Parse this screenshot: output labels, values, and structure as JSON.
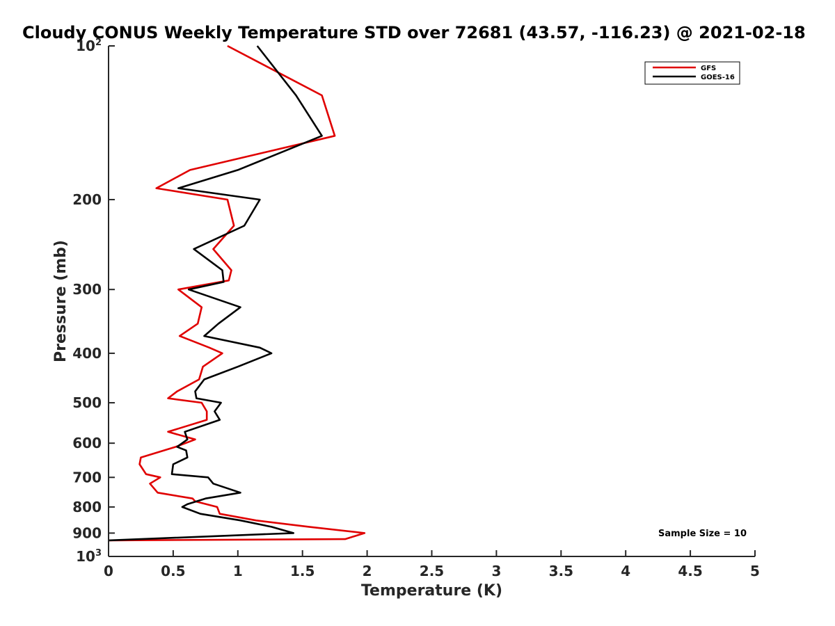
{
  "chart_data": {
    "type": "line",
    "title": "Cloudy CONUS Weekly Temperature STD over 72681 (43.57, -116.23) @ 2021-02-18",
    "xlabel": "Temperature (K)",
    "ylabel": "Pressure (mb)",
    "xlim": [
      0,
      5
    ],
    "ylim": [
      100,
      1000
    ],
    "y_scale": "log",
    "y_reversed": true,
    "grid": false,
    "x_ticks": [
      {
        "value": 0,
        "label": "0"
      },
      {
        "value": 0.5,
        "label": "0.5"
      },
      {
        "value": 1,
        "label": "1"
      },
      {
        "value": 1.5,
        "label": "1.5"
      },
      {
        "value": 2,
        "label": "2"
      },
      {
        "value": 2.5,
        "label": "2.5"
      },
      {
        "value": 3,
        "label": "3"
      },
      {
        "value": 3.5,
        "label": "3.5"
      },
      {
        "value": 4,
        "label": "4"
      },
      {
        "value": 4.5,
        "label": "4.5"
      },
      {
        "value": 5,
        "label": "5"
      }
    ],
    "y_ticks": [
      {
        "value": 100,
        "base": "10",
        "exp": "2"
      },
      {
        "value": 200,
        "label": "200"
      },
      {
        "value": 300,
        "label": "300"
      },
      {
        "value": 400,
        "label": "400"
      },
      {
        "value": 500,
        "label": "500"
      },
      {
        "value": 600,
        "label": "600"
      },
      {
        "value": 700,
        "label": "700"
      },
      {
        "value": 800,
        "label": "800"
      },
      {
        "value": 900,
        "label": "900"
      },
      {
        "value": 1000,
        "base": "10",
        "exp": "3"
      }
    ],
    "legend_position": "top-right",
    "series": [
      {
        "name": "GFS",
        "color": "#e00000",
        "points": [
          [
            0.92,
            100
          ],
          [
            1.65,
            125
          ],
          [
            1.75,
            150
          ],
          [
            0.63,
            175
          ],
          [
            0.37,
            190
          ],
          [
            0.92,
            200
          ],
          [
            0.97,
            225
          ],
          [
            0.81,
            250
          ],
          [
            0.95,
            275
          ],
          [
            0.93,
            288
          ],
          [
            0.54,
            300
          ],
          [
            0.72,
            325
          ],
          [
            0.69,
            350
          ],
          [
            0.55,
            370
          ],
          [
            0.78,
            390
          ],
          [
            0.88,
            400
          ],
          [
            0.73,
            425
          ],
          [
            0.7,
            450
          ],
          [
            0.53,
            475
          ],
          [
            0.46,
            490
          ],
          [
            0.72,
            500
          ],
          [
            0.76,
            520
          ],
          [
            0.76,
            540
          ],
          [
            0.46,
            570
          ],
          [
            0.67,
            590
          ],
          [
            0.52,
            610
          ],
          [
            0.25,
            640
          ],
          [
            0.24,
            660
          ],
          [
            0.29,
            690
          ],
          [
            0.4,
            700
          ],
          [
            0.32,
            720
          ],
          [
            0.38,
            750
          ],
          [
            0.65,
            770
          ],
          [
            0.67,
            780
          ],
          [
            0.84,
            800
          ],
          [
            0.86,
            825
          ],
          [
            1.14,
            850
          ],
          [
            1.55,
            875
          ],
          [
            1.98,
            900
          ],
          [
            1.83,
            925
          ],
          [
            0,
            930
          ]
        ]
      },
      {
        "name": "GOES-16",
        "color": "#000000",
        "points": [
          [
            1.15,
            100
          ],
          [
            1.45,
            125
          ],
          [
            1.65,
            150
          ],
          [
            1.0,
            175
          ],
          [
            0.54,
            190
          ],
          [
            1.17,
            200
          ],
          [
            1.05,
            225
          ],
          [
            0.66,
            250
          ],
          [
            0.88,
            275
          ],
          [
            0.89,
            290
          ],
          [
            0.62,
            300
          ],
          [
            1.02,
            325
          ],
          [
            0.85,
            350
          ],
          [
            0.74,
            370
          ],
          [
            1.17,
            390
          ],
          [
            1.26,
            400
          ],
          [
            1.0,
            425
          ],
          [
            0.74,
            450
          ],
          [
            0.67,
            475
          ],
          [
            0.68,
            490
          ],
          [
            0.87,
            500
          ],
          [
            0.82,
            520
          ],
          [
            0.86,
            540
          ],
          [
            0.59,
            570
          ],
          [
            0.61,
            590
          ],
          [
            0.53,
            610
          ],
          [
            0.6,
            620
          ],
          [
            0.61,
            640
          ],
          [
            0.5,
            660
          ],
          [
            0.49,
            690
          ],
          [
            0.77,
            700
          ],
          [
            0.81,
            720
          ],
          [
            1.02,
            750
          ],
          [
            0.75,
            770
          ],
          [
            0.61,
            790
          ],
          [
            0.57,
            800
          ],
          [
            0.71,
            825
          ],
          [
            1.02,
            850
          ],
          [
            1.26,
            875
          ],
          [
            1.43,
            900
          ],
          [
            0,
            930
          ]
        ]
      }
    ],
    "annotations": [
      {
        "text": "Sample Size = 10",
        "position": "bottom-right"
      }
    ]
  }
}
